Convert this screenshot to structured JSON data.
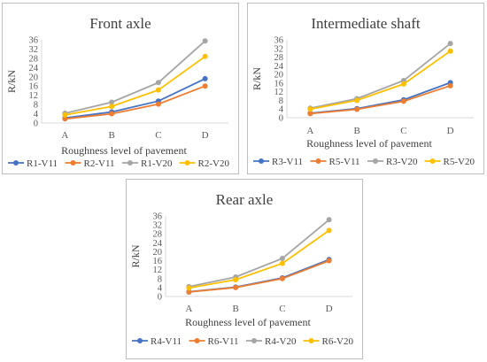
{
  "chart_data": [
    {
      "type": "line",
      "title": "Front axle",
      "xlabel": "Roughness level of pavement",
      "ylabel": "R/kN",
      "categories": [
        "A",
        "B",
        "C",
        "D"
      ],
      "yticks": [
        0,
        4,
        8,
        12,
        16,
        20,
        24,
        28,
        32,
        36
      ],
      "ylim": [
        0,
        36
      ],
      "grid": false,
      "legend_position": "bottom",
      "series": [
        {
          "name": "R1-V11",
          "color": "#4472c4",
          "values": [
            2.2,
            4.8,
            9.5,
            19.2
          ]
        },
        {
          "name": "R2-V11",
          "color": "#ed7d31",
          "values": [
            1.8,
            4.0,
            8.2,
            16.0
          ]
        },
        {
          "name": "R1-V20",
          "color": "#a5a5a5",
          "values": [
            4.2,
            9.0,
            17.5,
            35.5
          ]
        },
        {
          "name": "R2-V20",
          "color": "#ffc000",
          "values": [
            3.5,
            7.2,
            14.3,
            28.8
          ]
        }
      ]
    },
    {
      "type": "line",
      "title": "Intermediate shaft",
      "xlabel": "Roughness level of pavement",
      "ylabel": "R/kN",
      "categories": [
        "A",
        "B",
        "C",
        "D"
      ],
      "yticks": [
        0,
        4,
        8,
        12,
        16,
        20,
        24,
        28,
        32,
        36
      ],
      "ylim": [
        0,
        36
      ],
      "grid": false,
      "legend_position": "bottom",
      "series": [
        {
          "name": "R3-V11",
          "color": "#4472c4",
          "values": [
            2.1,
            4.2,
            8.3,
            16.2
          ]
        },
        {
          "name": "R5-V11",
          "color": "#ed7d31",
          "values": [
            1.9,
            3.9,
            7.6,
            14.8
          ]
        },
        {
          "name": "R3-V20",
          "color": "#a5a5a5",
          "values": [
            4.4,
            8.8,
            17.2,
            34.3
          ]
        },
        {
          "name": "R5-V20",
          "color": "#ffc000",
          "values": [
            4.0,
            8.0,
            15.6,
            30.8
          ]
        }
      ]
    },
    {
      "type": "line",
      "title": "Rear axle",
      "xlabel": "Roughness level of pavement",
      "ylabel": "R/kN",
      "categories": [
        "A",
        "B",
        "C",
        "D"
      ],
      "yticks": [
        0,
        4,
        8,
        12,
        16,
        20,
        24,
        28,
        32,
        36
      ],
      "ylim": [
        0,
        36
      ],
      "grid": false,
      "legend_position": "bottom",
      "series": [
        {
          "name": "R4-V11",
          "color": "#4472c4",
          "values": [
            2.1,
            4.2,
            8.3,
            16.5
          ]
        },
        {
          "name": "R6-V11",
          "color": "#ed7d31",
          "values": [
            2.0,
            4.0,
            8.0,
            16.0
          ]
        },
        {
          "name": "R4-V20",
          "color": "#a5a5a5",
          "values": [
            4.4,
            8.7,
            17.0,
            34.3
          ]
        },
        {
          "name": "R6-V20",
          "color": "#ffc000",
          "values": [
            3.8,
            7.5,
            14.8,
            29.5
          ]
        }
      ]
    }
  ]
}
